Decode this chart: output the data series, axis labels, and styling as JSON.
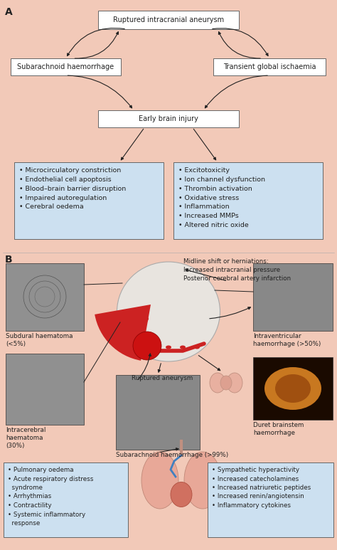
{
  "bg_color": "#f2c9b8",
  "box_bg_white": "#ffffff",
  "box_bg_blue": "#cce0f0",
  "box_border": "#666666",
  "arrow_color": "#222222",
  "text_color": "#222222",
  "label_A": "A",
  "label_B": "B",
  "top_box": "Ruptured intracranial aneurysm",
  "left_box": "Subarachnoid haemorrhage",
  "right_box": "Transient global ischaemia",
  "middle_box": "Early brain injury",
  "blue_box_left": "• Microcirculatory constriction\n• Endothelial cell apoptosis\n• Blood–brain barrier disruption\n• Impaired autoregulation\n• Cerebral oedema",
  "blue_box_right": "• Excitotoxicity\n• Ion channel dysfunction\n• Thrombin activation\n• Oxidative stress\n• Inflammation\n• Increased MMPs\n• Altered nitric oxide",
  "midline_text": "Midline shift or herniations:\nIncreased intracranial pressure\nPosterior cerebral artery infarction",
  "subdural_label": "Subdural haematoma\n(<5%)",
  "intrav_label": "Intraventricular\nhaemorrhage (>50%)",
  "intracereb_label": "Intracerebral\nhaematoma\n(30%)",
  "ruptured_label": "Ruptured aneurysm",
  "sah_label": "Subarachnoid haemorrhage (>99%)",
  "duret_label": "Duret brainstem\nhaemorrhage",
  "left_blue_B": "• Pulmonary oedema\n• Acute respiratory distress\n  syndrome\n• Arrhythmias\n• Contractility\n• Systemic inflammatory\n  response",
  "right_blue_B": "• Sympathetic hyperactivity\n• Increased catecholamines\n• Increased natriuretic peptides\n• Increased renin/angiotensin\n• Inflammatory cytokines"
}
